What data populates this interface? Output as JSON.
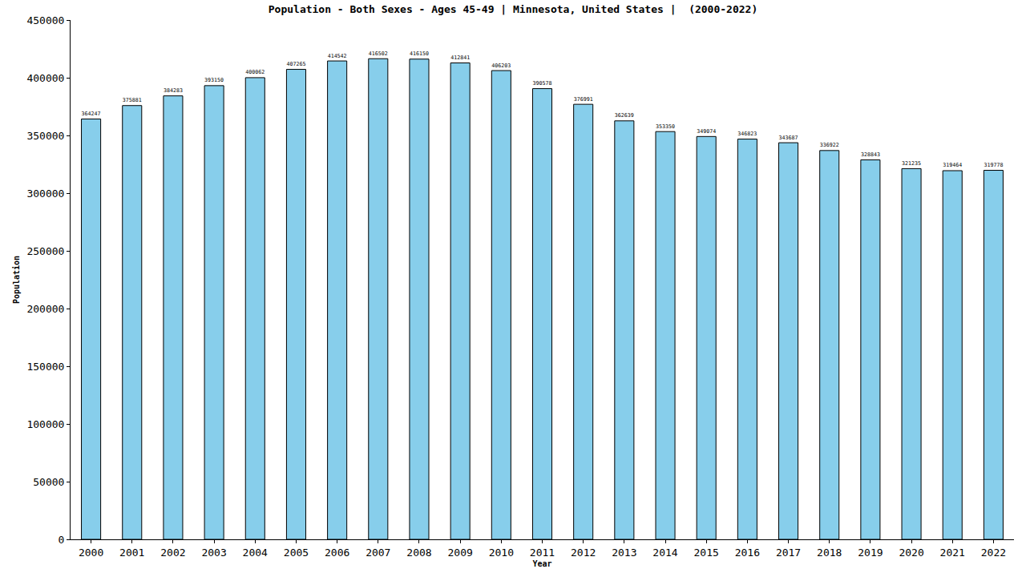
{
  "chart_data": {
    "type": "bar",
    "title": "Population - Both Sexes - Ages 45-49 | Minnesota, United States |  (2000-2022)",
    "x_label": "Year",
    "y_label": "Population",
    "categories": [
      "2000",
      "2001",
      "2002",
      "2003",
      "2004",
      "2005",
      "2006",
      "2007",
      "2008",
      "2009",
      "2010",
      "2011",
      "2012",
      "2013",
      "2014",
      "2015",
      "2016",
      "2017",
      "2018",
      "2019",
      "2020",
      "2021",
      "2022"
    ],
    "values": [
      364247,
      375881,
      384283,
      393150,
      400062,
      407265,
      414542,
      416502,
      416150,
      412841,
      406203,
      390578,
      376991,
      362639,
      353350,
      349074,
      346823,
      343687,
      336922,
      328843,
      321235,
      319464,
      319778
    ],
    "color": "#87ceeb",
    "ylim": [
      0,
      450000
    ],
    "yticks": [
      0,
      50000,
      100000,
      150000,
      200000,
      250000,
      300000,
      350000,
      400000,
      450000
    ],
    "grid": false,
    "data_labels": true
  }
}
